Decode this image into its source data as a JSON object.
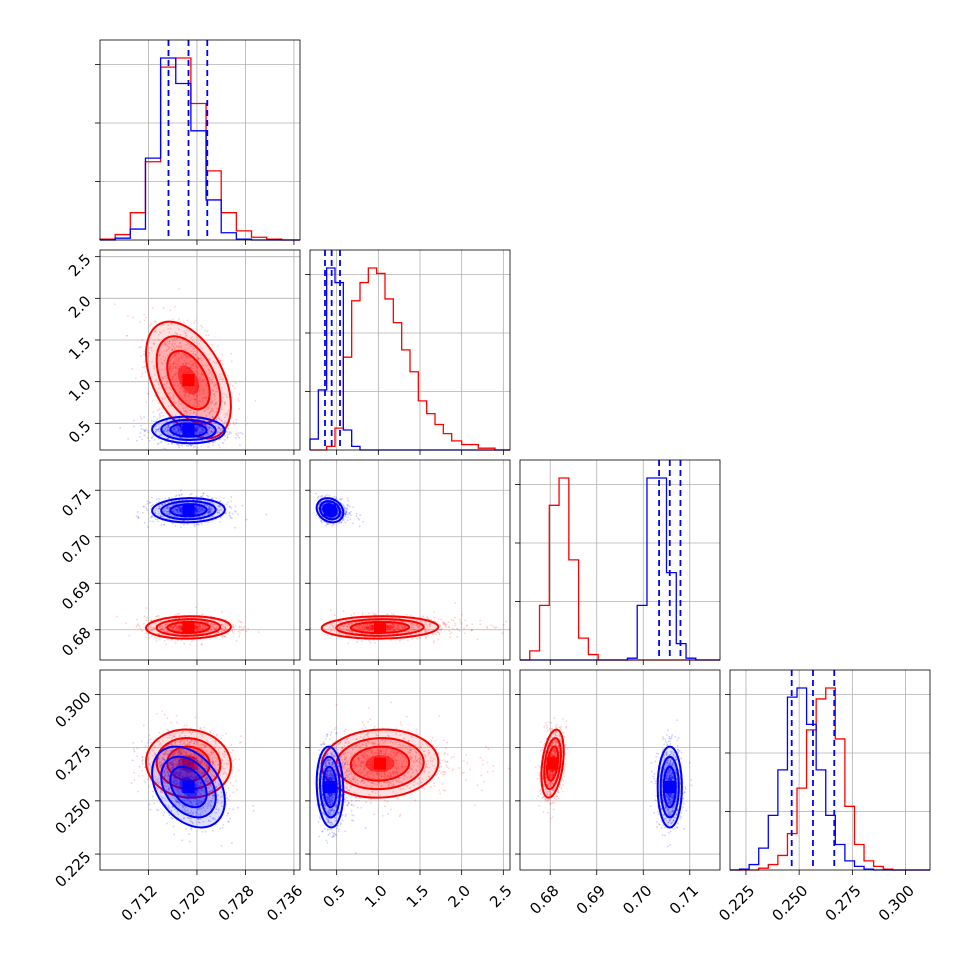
{
  "chart_data": {
    "type": "corner",
    "grid": true,
    "series": [
      {
        "name": "",
        "color": "#ff0000"
      },
      {
        "name": "",
        "color": "#0000ff"
      }
    ],
    "parameters": [
      {
        "range": [
          0.704,
          0.737
        ],
        "ticks": [
          0.712,
          0.72,
          0.728,
          0.736
        ],
        "tick_labels": [
          "0.712",
          "0.720",
          "0.728",
          "0.736"
        ]
      },
      {
        "range": [
          0.18,
          2.58
        ],
        "ticks": [
          0.5,
          1.0,
          1.5,
          2.0,
          2.5
        ],
        "tick_labels": [
          "0.5",
          "1.0",
          "1.5",
          "2.0",
          "2.5"
        ]
      },
      {
        "range": [
          0.6735,
          0.7165
        ],
        "ticks": [
          0.68,
          0.69,
          0.7,
          0.71
        ],
        "tick_labels": [
          "0.68",
          "0.69",
          "0.70",
          "0.71"
        ]
      },
      {
        "range": [
          0.2175,
          0.3115
        ],
        "ticks": [
          0.225,
          0.25,
          0.275,
          0.3
        ],
        "tick_labels": [
          "0.225",
          "0.250",
          "0.275",
          "0.300"
        ]
      }
    ],
    "quantile_lines": {
      "color": "#0000ff",
      "params": [
        [
          0.7153,
          0.7186,
          0.7217
        ],
        [
          0.36,
          0.44,
          0.54
        ],
        [
          0.7034,
          0.7057,
          0.708
        ],
        [
          0.2465,
          0.2565,
          0.2665
        ]
      ]
    },
    "histograms": [
      {
        "bin_edges": [
          0.704,
          0.7065,
          0.709,
          0.7115,
          0.714,
          0.7165,
          0.719,
          0.7215,
          0.724,
          0.7265,
          0.729,
          0.7315,
          0.734,
          0.737
        ],
        "red": [
          0.005,
          0.03,
          0.15,
          0.43,
          0.95,
          1.0,
          0.75,
          0.38,
          0.15,
          0.05,
          0.015,
          0.005,
          0.0
        ],
        "blue": [
          0.0,
          0.01,
          0.06,
          0.45,
          1.0,
          0.86,
          0.6,
          0.22,
          0.04,
          0.005,
          0.0,
          0.0,
          0.0
        ]
      },
      {
        "bin_edges": [
          0.18,
          0.28,
          0.38,
          0.48,
          0.58,
          0.68,
          0.78,
          0.88,
          0.98,
          1.08,
          1.18,
          1.28,
          1.38,
          1.48,
          1.58,
          1.68,
          1.78,
          1.88,
          2.0,
          2.2,
          2.4,
          2.58
        ],
        "red": [
          0.0,
          0.0,
          0.02,
          0.12,
          0.51,
          0.82,
          0.92,
          1.0,
          0.97,
          0.83,
          0.7,
          0.55,
          0.43,
          0.27,
          0.2,
          0.14,
          0.09,
          0.05,
          0.03,
          0.01,
          0.0
        ],
        "blue": [
          0.06,
          0.33,
          1.0,
          0.92,
          0.11,
          0.02,
          0.0,
          0.0,
          0.0,
          0.0,
          0.0,
          0.0,
          0.0,
          0.0,
          0.0,
          0.0,
          0.0,
          0.0,
          0.0,
          0.0,
          0.0
        ]
      },
      {
        "bin_edges": [
          0.6735,
          0.6756,
          0.6777,
          0.6798,
          0.6819,
          0.684,
          0.6861,
          0.6882,
          0.6903,
          0.6924,
          0.6945,
          0.6966,
          0.6987,
          0.7008,
          0.7029,
          0.705,
          0.7071,
          0.7092,
          0.7113,
          0.7134,
          0.7165
        ],
        "red": [
          0.0,
          0.05,
          0.3,
          0.85,
          1.0,
          0.55,
          0.12,
          0.03,
          0.0,
          0.0,
          0.0,
          0.0,
          0.0,
          0.0,
          0.0,
          0.0,
          0.0,
          0.0,
          0.0,
          0.0
        ],
        "blue": [
          0.0,
          0.0,
          0.0,
          0.0,
          0.0,
          0.0,
          0.0,
          0.0,
          0.0,
          0.0,
          0.0,
          0.01,
          0.3,
          1.0,
          1.0,
          0.48,
          0.09,
          0.01,
          0.0,
          0.0
        ]
      },
      {
        "bin_edges": [
          0.2175,
          0.222,
          0.2265,
          0.231,
          0.2355,
          0.24,
          0.2445,
          0.249,
          0.2535,
          0.258,
          0.2625,
          0.267,
          0.2715,
          0.276,
          0.2805,
          0.285,
          0.2895,
          0.294,
          0.2985,
          0.303,
          0.3115
        ],
        "red": [
          0.0,
          0.0,
          0.0,
          0.01,
          0.03,
          0.08,
          0.2,
          0.45,
          0.77,
          0.94,
          1.0,
          0.72,
          0.35,
          0.14,
          0.05,
          0.02,
          0.005,
          0.0,
          0.0,
          0.0
        ],
        "blue": [
          0.0,
          0.005,
          0.03,
          0.12,
          0.3,
          0.55,
          0.95,
          1.0,
          0.8,
          0.55,
          0.3,
          0.14,
          0.05,
          0.02,
          0.005,
          0.0,
          0.0,
          0.0,
          0.0,
          0.0
        ]
      }
    ],
    "distributions": {
      "red": {
        "mean": [
          0.7186,
          1.02,
          0.6805,
          0.2675
        ],
        "sd": [
          0.0035,
          0.35,
          0.0012,
          0.008
        ]
      },
      "blue": {
        "mean": [
          0.7186,
          0.42,
          0.7057,
          0.2565
        ],
        "sd": [
          0.003,
          0.08,
          0.0013,
          0.0095
        ]
      }
    },
    "pairs": [
      {
        "x": 0,
        "y": 1,
        "corr": {
          "red": -0.45,
          "blue": -0.05
        }
      },
      {
        "x": 0,
        "y": 2,
        "corr": {
          "red": 0.05,
          "blue": 0.05
        }
      },
      {
        "x": 0,
        "y": 3,
        "corr": {
          "red": -0.05,
          "blue": -0.35
        }
      },
      {
        "x": 1,
        "y": 2,
        "corr": {
          "red": 0.05,
          "blue": -0.2
        }
      },
      {
        "x": 1,
        "y": 3,
        "corr": {
          "red": 0.05,
          "blue": -0.1
        }
      },
      {
        "x": 2,
        "y": 3,
        "corr": {
          "red": 0.35,
          "blue": 0.0
        }
      }
    ],
    "contour_levels_sigma": [
      0.5,
      1.0,
      1.5,
      2.0
    ]
  }
}
